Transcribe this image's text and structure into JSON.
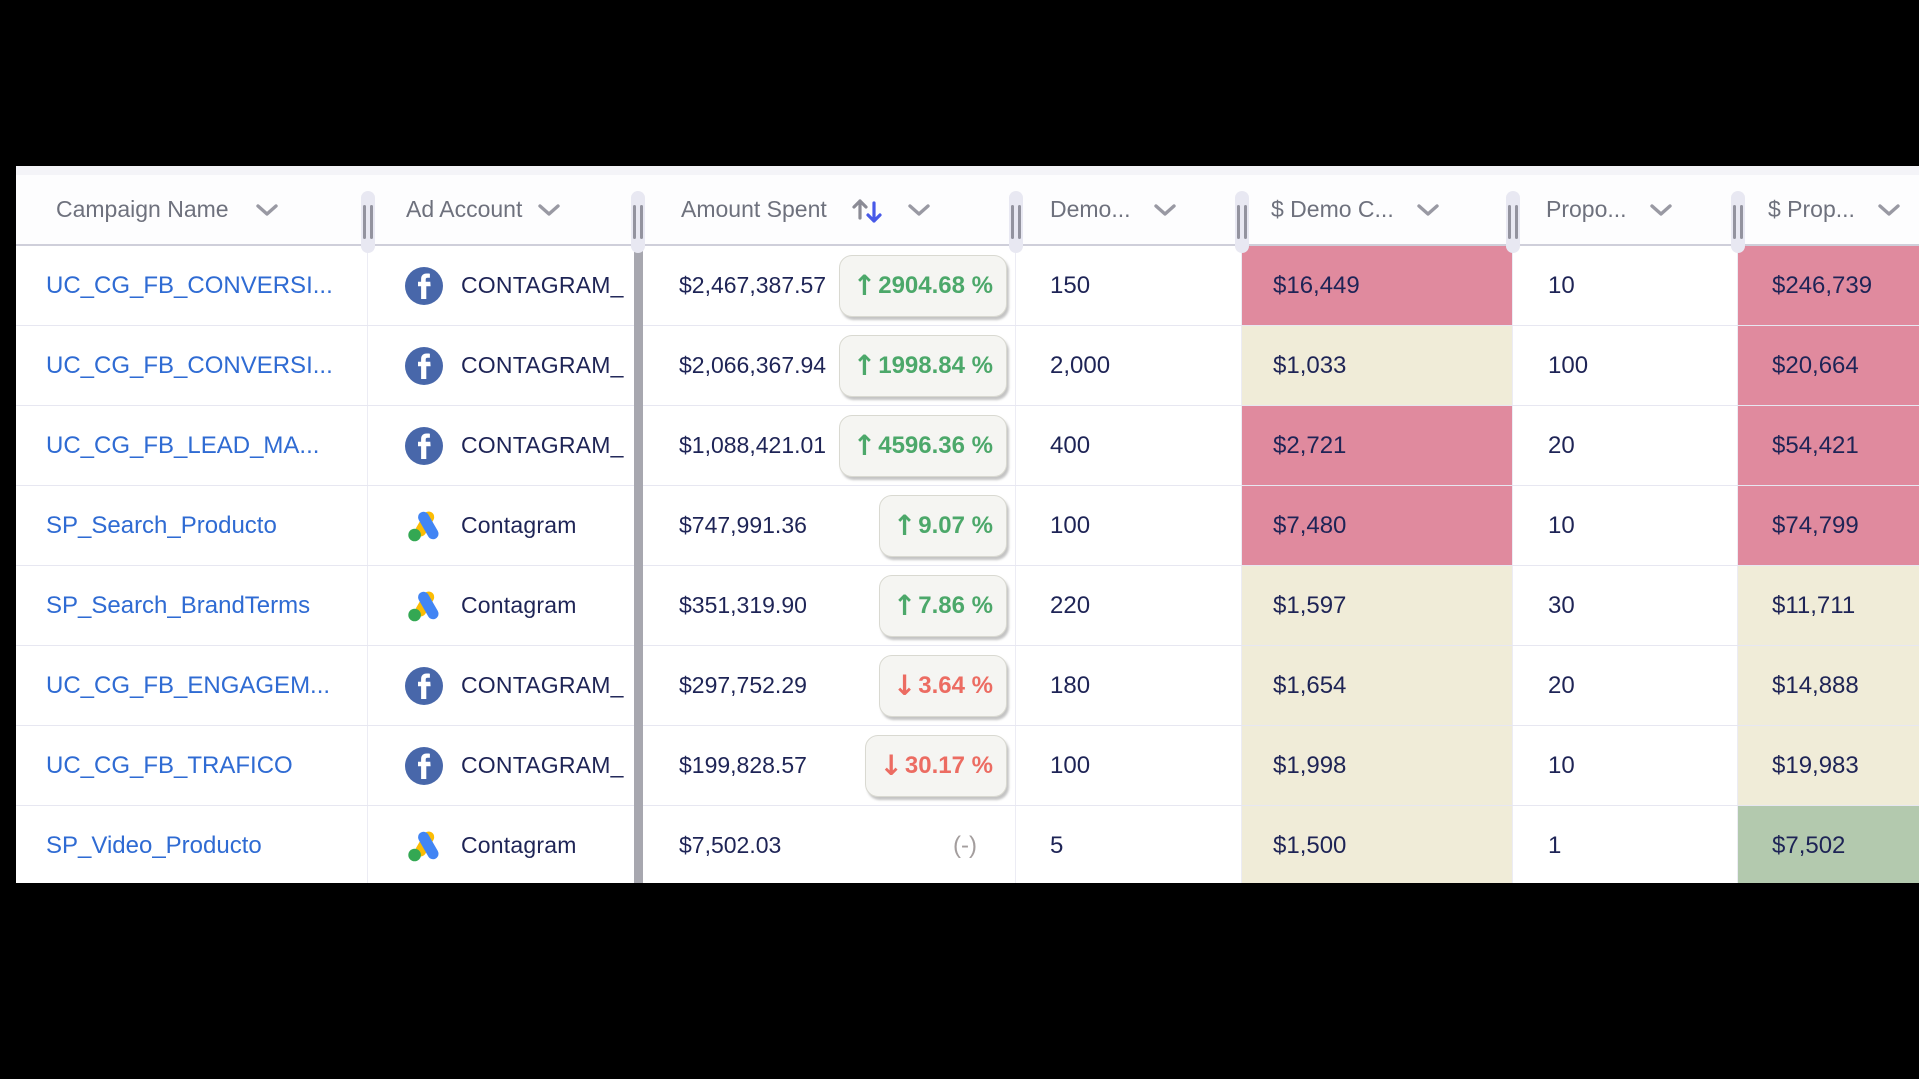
{
  "table": {
    "columns": [
      {
        "id": "campaign",
        "label": "Campaign Name"
      },
      {
        "id": "account",
        "label": "Ad Account"
      },
      {
        "id": "spent",
        "label": "Amount Spent",
        "sorted": "desc"
      },
      {
        "id": "demo",
        "label": "Demo..."
      },
      {
        "id": "demo_cost",
        "label": "$ Demo C..."
      },
      {
        "id": "propo",
        "label": "Propo..."
      },
      {
        "id": "prop_cost",
        "label": "$ Prop..."
      }
    ],
    "rows": [
      {
        "campaign": "UC_CG_FB_CONVERSI...",
        "platform": "facebook",
        "account": "CONTAGRAM_",
        "amount_spent": "$2,467,387.57",
        "change": "2904.68 %",
        "change_dir": "up",
        "demo": "150",
        "demo_cost": "$16,449",
        "demo_cost_bg": "pink",
        "propo": "10",
        "prop_cost": "$246,739",
        "prop_cost_bg": "pink"
      },
      {
        "campaign": "UC_CG_FB_CONVERSI...",
        "platform": "facebook",
        "account": "CONTAGRAM_",
        "amount_spent": "$2,066,367.94",
        "change": "1998.84 %",
        "change_dir": "up",
        "demo": "2,000",
        "demo_cost": "$1,033",
        "demo_cost_bg": "beige",
        "propo": "100",
        "prop_cost": "$20,664",
        "prop_cost_bg": "pink"
      },
      {
        "campaign": "UC_CG_FB_LEAD_MA...",
        "platform": "facebook",
        "account": "CONTAGRAM_",
        "amount_spent": "$1,088,421.01",
        "change": "4596.36 %",
        "change_dir": "up",
        "demo": "400",
        "demo_cost": "$2,721",
        "demo_cost_bg": "pink",
        "propo": "20",
        "prop_cost": "$54,421",
        "prop_cost_bg": "pink"
      },
      {
        "campaign": "SP_Search_Producto",
        "platform": "google-ads",
        "account": "Contagram",
        "amount_spent": "$747,991.36",
        "change": "9.07 %",
        "change_dir": "up",
        "demo": "100",
        "demo_cost": "$7,480",
        "demo_cost_bg": "pink",
        "propo": "10",
        "prop_cost": "$74,799",
        "prop_cost_bg": "pink"
      },
      {
        "campaign": "SP_Search_BrandTerms",
        "platform": "google-ads",
        "account": "Contagram",
        "amount_spent": "$351,319.90",
        "change": "7.86 %",
        "change_dir": "up",
        "demo": "220",
        "demo_cost": "$1,597",
        "demo_cost_bg": "beige",
        "propo": "30",
        "prop_cost": "$11,711",
        "prop_cost_bg": "beige"
      },
      {
        "campaign": "UC_CG_FB_ENGAGEM...",
        "platform": "facebook",
        "account": "CONTAGRAM_",
        "amount_spent": "$297,752.29",
        "change": "3.64 %",
        "change_dir": "down",
        "demo": "180",
        "demo_cost": "$1,654",
        "demo_cost_bg": "beige",
        "propo": "20",
        "prop_cost": "$14,888",
        "prop_cost_bg": "beige"
      },
      {
        "campaign": "UC_CG_FB_TRAFICO",
        "platform": "facebook",
        "account": "CONTAGRAM_",
        "amount_spent": "$199,828.57",
        "change": "30.17 %",
        "change_dir": "down",
        "demo": "100",
        "demo_cost": "$1,998",
        "demo_cost_bg": "beige",
        "propo": "10",
        "prop_cost": "$19,983",
        "prop_cost_bg": "beige"
      },
      {
        "campaign": "SP_Video_Producto",
        "platform": "google-ads",
        "account": "Contagram",
        "amount_spent": "$7,502.03",
        "change": "(-)",
        "change_dir": "none",
        "demo": "5",
        "demo_cost": "$1,500",
        "demo_cost_bg": "beige",
        "propo": "1",
        "prop_cost": "$7,502",
        "prop_cost_bg": "green"
      }
    ]
  },
  "colors": {
    "cell_pink": "#e08a9e",
    "cell_beige": "#f0ecd8",
    "cell_green": "#b3c9ae",
    "badge_up_green": "#4ca86a",
    "badge_down_red": "#ec6c62",
    "text_navy": "#1e2456",
    "link_blue": "#2f6bd3",
    "header_gray": "#6e717d",
    "sort_down_blue": "#4759e8",
    "facebook_blue": "#4867aa",
    "google_yellow": "#fbbc04",
    "google_blue": "#4285f4",
    "google_green": "#34a853",
    "pinned_divider_gray": "#a7a7af"
  }
}
